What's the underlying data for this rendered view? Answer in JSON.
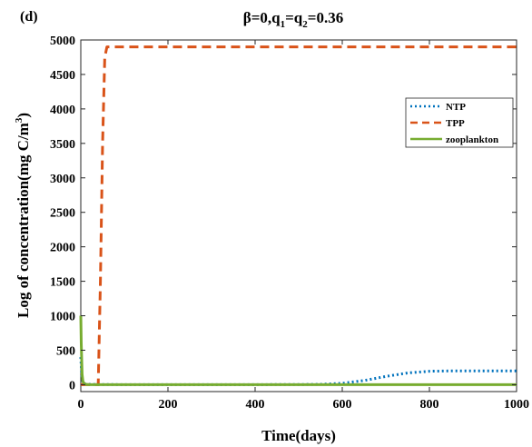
{
  "chart_data": {
    "type": "line",
    "panel_label": "(d)",
    "title_parts": {
      "beta": "β=0,q",
      "sub1": "1",
      "eq": "=q",
      "sub2": "2",
      "val": "=0.36"
    },
    "xlabel": "Time(days)",
    "ylabel_parts": {
      "main": "Log of concentration(mg C/m",
      "sup": "3",
      "close": ")"
    },
    "xlim": [
      0,
      1000
    ],
    "ylim": [
      -100,
      5000
    ],
    "xticks": [
      0,
      200,
      400,
      600,
      800,
      1000
    ],
    "yticks": [
      0,
      500,
      1000,
      1500,
      2000,
      2500,
      3000,
      3500,
      4000,
      4500,
      5000
    ],
    "grid": false,
    "legend_position": "upper-right",
    "series": [
      {
        "name": "NTP",
        "style": "dotted",
        "color": "#0072BD",
        "x": [
          0,
          2,
          5,
          10,
          20,
          50,
          100,
          200,
          300,
          400,
          500,
          550,
          600,
          650,
          700,
          750,
          800,
          850,
          900,
          950,
          1000
        ],
        "y": [
          400,
          150,
          30,
          10,
          5,
          2,
          1,
          1,
          1,
          1,
          2,
          5,
          20,
          60,
          120,
          170,
          195,
          200,
          200,
          200,
          200
        ]
      },
      {
        "name": "TPP",
        "style": "dashed",
        "color": "#D95319",
        "x": [
          0,
          3,
          10,
          20,
          30,
          40,
          45,
          50,
          55,
          60,
          100,
          200,
          400,
          600,
          800,
          1000
        ],
        "y": [
          0,
          0,
          0,
          0,
          0,
          0,
          1500,
          3500,
          4750,
          4900,
          4900,
          4900,
          4900,
          4900,
          4900,
          4900
        ]
      },
      {
        "name": "zooplankton",
        "style": "solid",
        "color": "#77AC30",
        "x": [
          0,
          1,
          3,
          5,
          10,
          20,
          100,
          400,
          700,
          1000
        ],
        "y": [
          1000,
          600,
          150,
          40,
          5,
          0,
          0,
          0,
          0,
          0
        ]
      }
    ]
  }
}
